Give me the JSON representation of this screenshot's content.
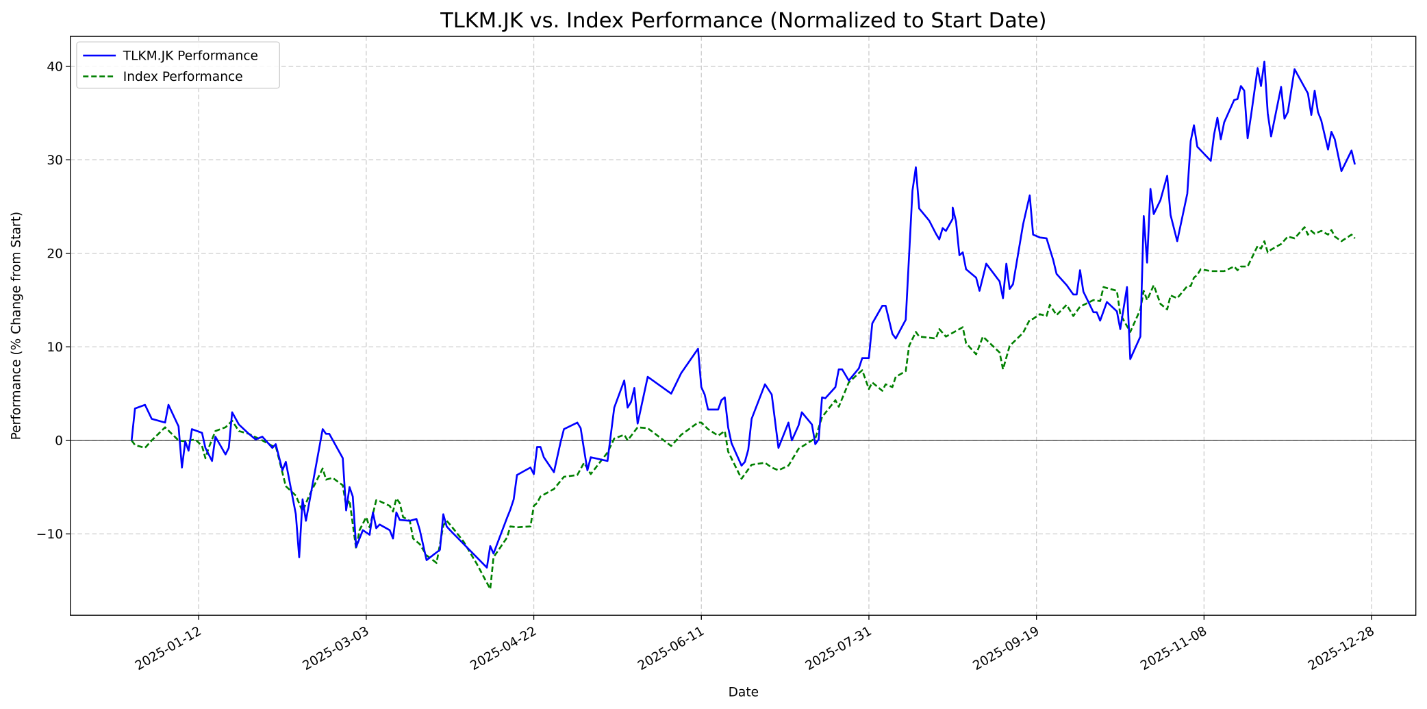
{
  "chart_data": {
    "type": "line",
    "title": "TLKM.JK vs. Index Performance (Normalized to Start Date)",
    "xlabel": "Date",
    "ylabel": "Performance (% Change from Start)",
    "x_unit": "days since 2025-01-01",
    "xlim": [
      -27.3,
      374.2
    ],
    "ylim": [
      -18.7,
      43.2
    ],
    "grid": true,
    "legend_position": "top-left",
    "x_ticks": [
      {
        "label": "2025-01-12",
        "day": 11
      },
      {
        "label": "2025-03-03",
        "day": 61
      },
      {
        "label": "2025-04-22",
        "day": 111
      },
      {
        "label": "2025-06-11",
        "day": 161
      },
      {
        "label": "2025-07-31",
        "day": 211
      },
      {
        "label": "2025-09-19",
        "day": 261
      },
      {
        "label": "2025-11-08",
        "day": 311
      },
      {
        "label": "2025-12-28",
        "day": 361
      }
    ],
    "y_ticks": [
      -10,
      0,
      10,
      20,
      30,
      40
    ],
    "y_tick_labels": [
      "−10",
      "0",
      "10",
      "20",
      "30",
      "40"
    ],
    "reference_line": 0,
    "series": [
      {
        "name": "TLKM.JK Performance",
        "color": "#0000ff",
        "style": "solid",
        "x": [
          -9,
          -8,
          -5,
          -3,
          1,
          2,
          5,
          6,
          7,
          8,
          9,
          12,
          13,
          15,
          16,
          19,
          20,
          21,
          23,
          26,
          28,
          30,
          33,
          34,
          36,
          37,
          40,
          41,
          42,
          43,
          48,
          49,
          50,
          54,
          55,
          56,
          57,
          58,
          60,
          62,
          63,
          64,
          65,
          68,
          69,
          70,
          71,
          74,
          76,
          77,
          79,
          83,
          84,
          85,
          86,
          97,
          98,
          99,
          103,
          104,
          105,
          106,
          110,
          111,
          112,
          113,
          114,
          117,
          119,
          120,
          124,
          125,
          126,
          127,
          128,
          133,
          135,
          138,
          139,
          140,
          141,
          142,
          145,
          152,
          155,
          160,
          161,
          162,
          163,
          166,
          167,
          168,
          169,
          170,
          173,
          174,
          175,
          176,
          180,
          182,
          184,
          187,
          188,
          190,
          191,
          194,
          195,
          196,
          197,
          198,
          201,
          202,
          203,
          205,
          208,
          209,
          211,
          212,
          215,
          216,
          218,
          219,
          222,
          224,
          225,
          226,
          229,
          231,
          232,
          233,
          234,
          236,
          236,
          237,
          238,
          239,
          240,
          243,
          244,
          246,
          250,
          251,
          252,
          253,
          254,
          257,
          259,
          260,
          262,
          264,
          266,
          267,
          270,
          272,
          273,
          274,
          275,
          278,
          279,
          280,
          282,
          285,
          286,
          288,
          289,
          292,
          293,
          294,
          295,
          296,
          298,
          300,
          301,
          303,
          306,
          307,
          308,
          309,
          313,
          314,
          315,
          316,
          317,
          320,
          321,
          322,
          323,
          324,
          325,
          327,
          328,
          329,
          330,
          331,
          334,
          335,
          336,
          338,
          342,
          343,
          344,
          345,
          346,
          348,
          349,
          350,
          352,
          355,
          356
        ],
        "y": [
          0,
          3.4,
          3.8,
          2.3,
          1.9,
          3.8,
          1.5,
          -2.9,
          -0.1,
          -1.1,
          1.2,
          0.8,
          -0.8,
          -2.2,
          0.4,
          -1.5,
          -0.8,
          3.0,
          1.7,
          0.7,
          0.1,
          0.4,
          -0.8,
          -0.4,
          -3.2,
          -2.3,
          -7.9,
          -12.5,
          -6.3,
          -8.6,
          1.2,
          0.7,
          0.7,
          -1.9,
          -7.5,
          -5.0,
          -6.0,
          -11.4,
          -9.6,
          -10.1,
          -7.7,
          -9.4,
          -9.0,
          -9.6,
          -10.5,
          -7.7,
          -8.5,
          -8.6,
          -8.4,
          -9.6,
          -12.8,
          -11.7,
          -7.9,
          -9.2,
          -9.6,
          -13.6,
          -11.3,
          -12.1,
          -8.3,
          -7.4,
          -6.3,
          -3.7,
          -2.9,
          -3.6,
          -0.7,
          -0.7,
          -1.8,
          -3.4,
          -0.2,
          1.2,
          1.9,
          1.3,
          -1.0,
          -3.2,
          -1.8,
          -2.2,
          3.5,
          6.4,
          3.5,
          4.1,
          5.6,
          1.8,
          6.8,
          5.0,
          7.2,
          9.8,
          5.7,
          4.9,
          3.3,
          3.3,
          4.3,
          4.6,
          1.4,
          -0.3,
          -2.7,
          -2.3,
          -1.0,
          2.3,
          6.0,
          4.9,
          -0.8,
          1.9,
          0.0,
          1.6,
          3.0,
          1.7,
          -0.4,
          0.1,
          4.6,
          4.5,
          5.7,
          7.6,
          7.6,
          6.4,
          7.7,
          8.8,
          8.8,
          12.5,
          14.4,
          14.4,
          11.4,
          10.9,
          12.9,
          26.7,
          29.2,
          24.8,
          23.5,
          22.1,
          21.5,
          22.7,
          22.4,
          23.7,
          24.9,
          23.4,
          19.8,
          20.1,
          18.3,
          17.4,
          16.0,
          18.9,
          17.0,
          15.2,
          18.9,
          16.2,
          16.7,
          23.1,
          26.2,
          22.0,
          21.7,
          21.6,
          19.3,
          17.8,
          16.6,
          15.6,
          15.6,
          18.2,
          15.9,
          13.7,
          13.7,
          12.8,
          14.8,
          13.8,
          11.9,
          16.4,
          8.7,
          11.1,
          24.0,
          19.0,
          26.9,
          24.2,
          25.7,
          28.3,
          24.1,
          21.3,
          26.4,
          32.0,
          33.7,
          31.4,
          29.9,
          32.7,
          34.5,
          32.2,
          34.0,
          36.4,
          36.5,
          37.9,
          37.4,
          32.3,
          34.7,
          39.8,
          37.9,
          40.5,
          35.0,
          32.5,
          37.8,
          34.4,
          35.1,
          39.7,
          37.1,
          34.8,
          37.4,
          35.1,
          34.2,
          31.1,
          33.0,
          32.2,
          28.8,
          31.0,
          29.5
        ]
      },
      {
        "name": "Index Performance",
        "color": "#008000",
        "style": "dashed",
        "x": [
          -9,
          -8,
          -5,
          -3,
          1,
          5,
          7,
          10,
          12,
          13,
          14,
          16,
          19,
          21,
          23,
          26,
          30,
          33,
          34,
          37,
          40,
          42,
          44,
          48,
          49,
          51,
          54,
          55,
          56,
          58,
          59,
          61,
          62,
          64,
          65,
          68,
          69,
          70,
          71,
          72,
          74,
          75,
          77,
          79,
          82,
          84,
          85,
          86,
          90,
          94,
          98,
          99,
          103,
          104,
          106,
          110,
          111,
          112,
          113,
          117,
          120,
          124,
          126,
          128,
          133,
          135,
          138,
          139,
          142,
          145,
          152,
          155,
          160,
          161,
          163,
          166,
          168,
          169,
          173,
          176,
          180,
          182,
          184,
          187,
          190,
          194,
          195,
          197,
          201,
          202,
          205,
          208,
          209,
          211,
          212,
          215,
          216,
          218,
          219,
          222,
          223,
          225,
          226,
          231,
          232,
          234,
          236,
          238,
          239,
          240,
          243,
          245,
          250,
          251,
          253,
          257,
          259,
          260,
          262,
          264,
          265,
          267,
          270,
          272,
          274,
          278,
          280,
          281,
          285,
          286,
          289,
          292,
          293,
          294,
          296,
          298,
          300,
          301,
          303,
          306,
          307,
          308,
          309,
          310,
          313,
          315,
          317,
          320,
          321,
          322,
          324,
          327,
          328,
          329,
          330,
          331,
          334,
          335,
          336,
          338,
          341,
          342,
          343,
          344,
          346,
          348,
          349,
          350,
          352,
          355,
          356
        ],
        "y": [
          0,
          -0.5,
          -0.8,
          0,
          1.4,
          0,
          -0.1,
          0.1,
          -0.6,
          -1.9,
          -0.8,
          1.0,
          1.4,
          2.1,
          1.0,
          0.7,
          0,
          -0.6,
          -0.6,
          -4.9,
          -5.9,
          -7.6,
          -5.9,
          -3.0,
          -4.2,
          -4.0,
          -4.8,
          -7.0,
          -6.4,
          -11.6,
          -9.6,
          -8.2,
          -9.3,
          -6.4,
          -6.5,
          -7.0,
          -7.6,
          -6.2,
          -6.7,
          -8.2,
          -8.6,
          -10.5,
          -11.1,
          -12.3,
          -13.1,
          -9.1,
          -8.6,
          -9.0,
          -10.8,
          -13.2,
          -15.9,
          -12.5,
          -10.4,
          -9.2,
          -9.3,
          -9.2,
          -7.0,
          -6.7,
          -6.0,
          -5.2,
          -3.9,
          -3.7,
          -2.4,
          -3.6,
          -1.3,
          0.2,
          0.6,
          0,
          1.4,
          1.3,
          -0.6,
          0.6,
          1.9,
          1.9,
          1.2,
          0.5,
          1.0,
          -1.2,
          -4.1,
          -2.6,
          -2.4,
          -2.9,
          -3.2,
          -2.7,
          -0.9,
          0,
          0.2,
          2.5,
          4.3,
          3.6,
          6.2,
          7.2,
          7.5,
          5.5,
          6.2,
          5.3,
          6.0,
          5.7,
          6.8,
          7.4,
          10.1,
          11.6,
          11.1,
          10.9,
          11.9,
          11.1,
          11.5,
          11.9,
          12.1,
          10.4,
          9.2,
          11.1,
          9.4,
          7.6,
          10.1,
          11.5,
          12.9,
          13.0,
          13.5,
          13.3,
          14.5,
          13.4,
          14.5,
          13.3,
          14.3,
          15.0,
          14.9,
          16.4,
          16.0,
          13.5,
          11.6,
          14.0,
          16.0,
          15.0,
          16.6,
          14.6,
          14.0,
          15.5,
          15.2,
          16.5,
          16.5,
          17.4,
          17.7,
          18.3,
          18.1,
          18.1,
          18.1,
          18.6,
          18.2,
          18.6,
          18.6,
          20.8,
          20.5,
          21.3,
          20.1,
          20.4,
          21.0,
          21.4,
          21.8,
          21.6,
          22.8,
          22.0,
          22.4,
          22.1,
          22.4,
          22.0,
          22.5,
          21.8,
          21.3,
          22.0,
          21.6
        ]
      }
    ]
  }
}
